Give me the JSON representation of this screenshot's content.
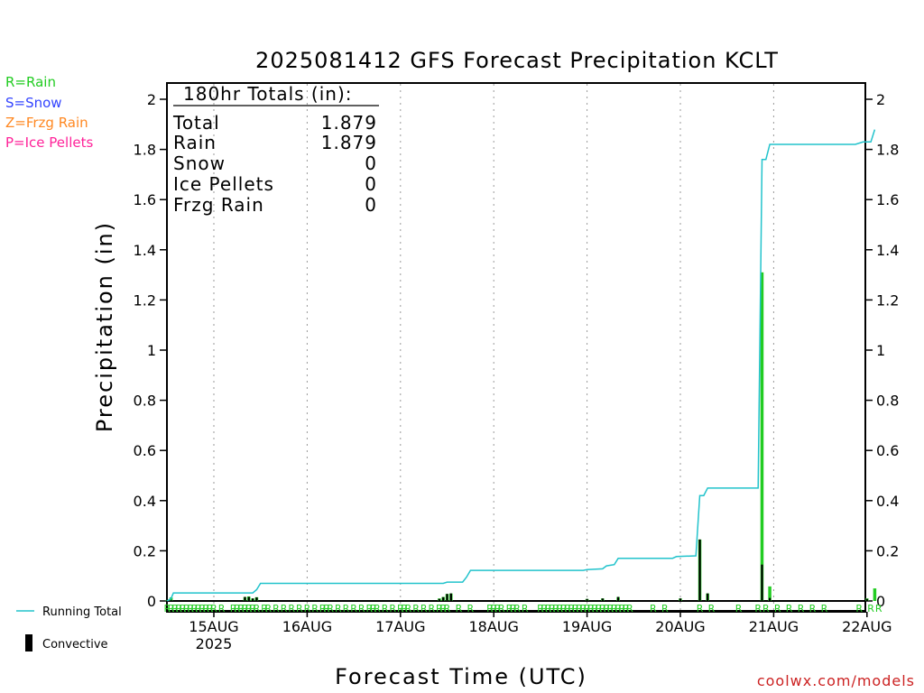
{
  "title": "2025081412 GFS Forecast Precipitation KCLT",
  "type_legend": [
    {
      "code_label": "R=Rain",
      "color": "#22cc22"
    },
    {
      "code_label": "S=Snow",
      "color": "#3344ff"
    },
    {
      "code_label": "Z=Frzg Rain",
      "color": "#ff8822"
    },
    {
      "code_label": "P=Ice Pellets",
      "color": "#ff2299"
    }
  ],
  "series_legend": {
    "running_total_label": "Running Total",
    "running_total_color": "#22c3cc",
    "convective_label": "Convective",
    "convective_color": "#000000"
  },
  "totals_box": {
    "header": "180hr Totals (in):",
    "rows": [
      {
        "label": "Total",
        "value": "1.879"
      },
      {
        "label": "Rain",
        "value": "1.879"
      },
      {
        "label": "Snow",
        "value": "0"
      },
      {
        "label": "Ice Pellets",
        "value": "0"
      },
      {
        "label": "Frzg Rain",
        "value": "0"
      }
    ]
  },
  "footer_credit": "coolwx.com/models",
  "year_label": "2025",
  "chart_data": {
    "type": "bar",
    "title": "2025081412 GFS Forecast Precipitation KCLT",
    "xlabel": "Forecast Time (UTC)",
    "ylabel": "Precipitation (in)",
    "ylim": [
      0,
      2.1
    ],
    "xlim_hours_from_14AUG12Z": [
      -3,
      183
    ],
    "y_ticks": [
      "0",
      "0.2",
      "0.4",
      "0.6",
      "0.8",
      "1",
      "1.2",
      "1.4",
      "1.6",
      "1.8",
      "2"
    ],
    "x_ticks": [
      "15AUG",
      "16AUG",
      "17AUG",
      "18AUG",
      "19AUG",
      "20AUG",
      "21AUG",
      "22AUG"
    ],
    "grid": "vertical dotted at each day",
    "precip_bars": [
      {
        "hour": 0,
        "total": 0.004,
        "convective": 0.002
      },
      {
        "hour": 1,
        "total": 0.014,
        "convective": 0.004
      },
      {
        "hour": 20,
        "total": 0.016,
        "convective": 0.016
      },
      {
        "hour": 21,
        "total": 0.018,
        "convective": 0.016
      },
      {
        "hour": 22,
        "total": 0.01,
        "convective": 0.01
      },
      {
        "hour": 23,
        "total": 0.015,
        "convective": 0.014
      },
      {
        "hour": 70,
        "total": 0.01,
        "convective": 0.008
      },
      {
        "hour": 71,
        "total": 0.016,
        "convective": 0.015
      },
      {
        "hour": 72,
        "total": 0.028,
        "convective": 0.028
      },
      {
        "hour": 73,
        "total": 0.03,
        "convective": 0.03
      },
      {
        "hour": 108,
        "total": 0.008,
        "convective": 0.008
      },
      {
        "hour": 112,
        "total": 0.01,
        "convective": 0.01
      },
      {
        "hour": 116,
        "total": 0.016,
        "convective": 0.016
      },
      {
        "hour": 132,
        "total": 0.01,
        "convective": 0.01
      },
      {
        "hour": 137,
        "total": 0.245,
        "convective": 0.245
      },
      {
        "hour": 139,
        "total": 0.03,
        "convective": 0.03
      },
      {
        "hour": 153,
        "total": 1.31,
        "convective": 0.145
      },
      {
        "hour": 155,
        "total": 0.058,
        "convective": 0.012
      },
      {
        "hour": 180,
        "total": 0.01,
        "convective": 0.008
      },
      {
        "hour": 182,
        "total": 0.05,
        "convective": 0.0
      }
    ],
    "running_total": [
      [
        0,
        0.0
      ],
      [
        1,
        0.01
      ],
      [
        1.6,
        0.032
      ],
      [
        22,
        0.032
      ],
      [
        23,
        0.045
      ],
      [
        24,
        0.07
      ],
      [
        71,
        0.07
      ],
      [
        72,
        0.075
      ],
      [
        76,
        0.075
      ],
      [
        77,
        0.095
      ],
      [
        78,
        0.122
      ],
      [
        107,
        0.122
      ],
      [
        108,
        0.125
      ],
      [
        112,
        0.128
      ],
      [
        113,
        0.14
      ],
      [
        115,
        0.145
      ],
      [
        116,
        0.17
      ],
      [
        130,
        0.17
      ],
      [
        131,
        0.177
      ],
      [
        136,
        0.18
      ],
      [
        137,
        0.42
      ],
      [
        138,
        0.42
      ],
      [
        139,
        0.45
      ],
      [
        152,
        0.45
      ],
      [
        153,
        1.76
      ],
      [
        154,
        1.76
      ],
      [
        155,
        1.82
      ],
      [
        177,
        1.82
      ],
      [
        179,
        1.83
      ],
      [
        181,
        1.83
      ],
      [
        182,
        1.879
      ]
    ],
    "type_markers": {
      "symbol": "R",
      "hours": [
        0,
        1,
        2,
        3,
        4,
        5,
        6,
        7,
        8,
        9,
        10,
        11,
        12,
        14,
        17,
        18,
        19,
        20,
        21,
        22,
        23,
        25,
        26,
        28,
        30,
        32,
        34,
        36,
        38,
        40,
        41,
        42,
        44,
        46,
        48,
        50,
        52,
        53,
        54,
        56,
        58,
        60,
        61,
        62,
        64,
        66,
        68,
        70,
        71,
        72,
        75,
        78,
        83,
        84,
        85,
        86,
        88,
        89,
        90,
        92,
        96,
        97,
        98,
        99,
        100,
        101,
        102,
        103,
        104,
        105,
        106,
        107,
        108,
        109,
        110,
        111,
        112,
        113,
        114,
        115,
        116,
        117,
        118,
        119,
        125,
        128,
        137,
        140,
        147,
        152,
        154,
        157,
        160,
        163,
        166,
        169,
        178,
        181,
        183
      ]
    }
  }
}
